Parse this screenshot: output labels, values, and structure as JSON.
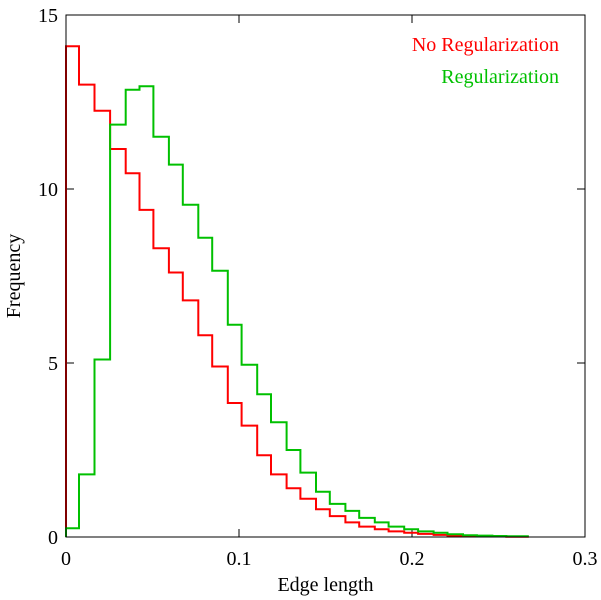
{
  "chart_data": {
    "type": "line",
    "style": "step-histogram",
    "title": "",
    "xlabel": "Edge length",
    "ylabel": "Frequency",
    "xlim": [
      0,
      0.3
    ],
    "ylim": [
      0,
      15
    ],
    "x_ticks": [
      0,
      0.1,
      0.2,
      0.3
    ],
    "x_tick_labels": [
      "0",
      "0.1",
      "0.2",
      "0.3"
    ],
    "y_ticks": [
      0,
      5,
      10,
      15
    ],
    "y_tick_labels": [
      "0",
      "5",
      "10",
      "15"
    ],
    "grid": false,
    "legend_position": "top-right",
    "bin_edges": [
      0,
      0.0075,
      0.0165,
      0.0255,
      0.0345,
      0.0425,
      0.0505,
      0.0595,
      0.0675,
      0.0765,
      0.0845,
      0.0935,
      0.1015,
      0.1105,
      0.1185,
      0.1275,
      0.1355,
      0.1445,
      0.1525,
      0.1615,
      0.1695,
      0.1785,
      0.1865,
      0.1955,
      0.2035,
      0.2125,
      0.2205,
      0.2295,
      0.2375,
      0.2465,
      0.2545,
      0.2635,
      0.2675
    ],
    "series": [
      {
        "name": "No Regularization",
        "color": "#ff0000",
        "values": [
          14.1,
          13.0,
          12.25,
          11.15,
          10.45,
          9.4,
          8.3,
          7.6,
          6.8,
          5.8,
          4.9,
          3.85,
          3.2,
          2.35,
          1.8,
          1.4,
          1.1,
          0.8,
          0.6,
          0.42,
          0.3,
          0.22,
          0.16,
          0.12,
          0.09,
          0.06,
          0.04,
          0.03,
          0.02,
          0.02,
          0.01,
          0.01
        ]
      },
      {
        "name": "Regularization",
        "color": "#00c000",
        "values": [
          0.25,
          1.8,
          5.1,
          11.85,
          12.85,
          12.95,
          11.5,
          10.7,
          9.55,
          8.6,
          7.65,
          6.1,
          4.95,
          4.1,
          3.3,
          2.5,
          1.85,
          1.3,
          0.95,
          0.75,
          0.55,
          0.42,
          0.3,
          0.22,
          0.16,
          0.12,
          0.08,
          0.05,
          0.04,
          0.03,
          0.02,
          0.02
        ]
      }
    ]
  }
}
